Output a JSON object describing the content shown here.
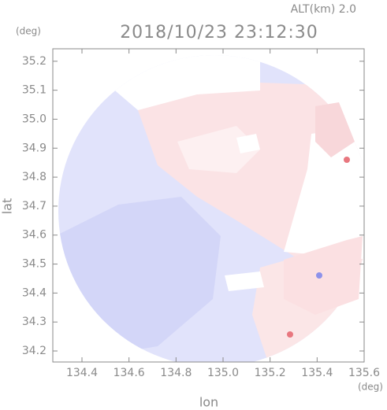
{
  "chart_data": {
    "type": "map",
    "title": "2018/10/23 23:12:30",
    "subtitle": "ALT(km) 2.0",
    "x_label": "lon",
    "y_label": "lat",
    "x_unit": "(deg)",
    "y_unit": "(deg)",
    "xlim": [
      134.276,
      135.6
    ],
    "ylim": [
      34.162,
      35.243
    ],
    "xticks": [
      134.4,
      134.6,
      134.8,
      {
        "value": 135,
        "label": "135.0"
      },
      135.2,
      135.4,
      135.6
    ],
    "yticks": [
      {
        "value": 35.2,
        "label": "35.2"
      },
      35.1,
      {
        "value": 35,
        "label": "35.0"
      },
      34.9,
      34.8,
      34.7,
      34.6,
      34.5,
      34.4,
      34.3,
      34.2
    ]
  }
}
